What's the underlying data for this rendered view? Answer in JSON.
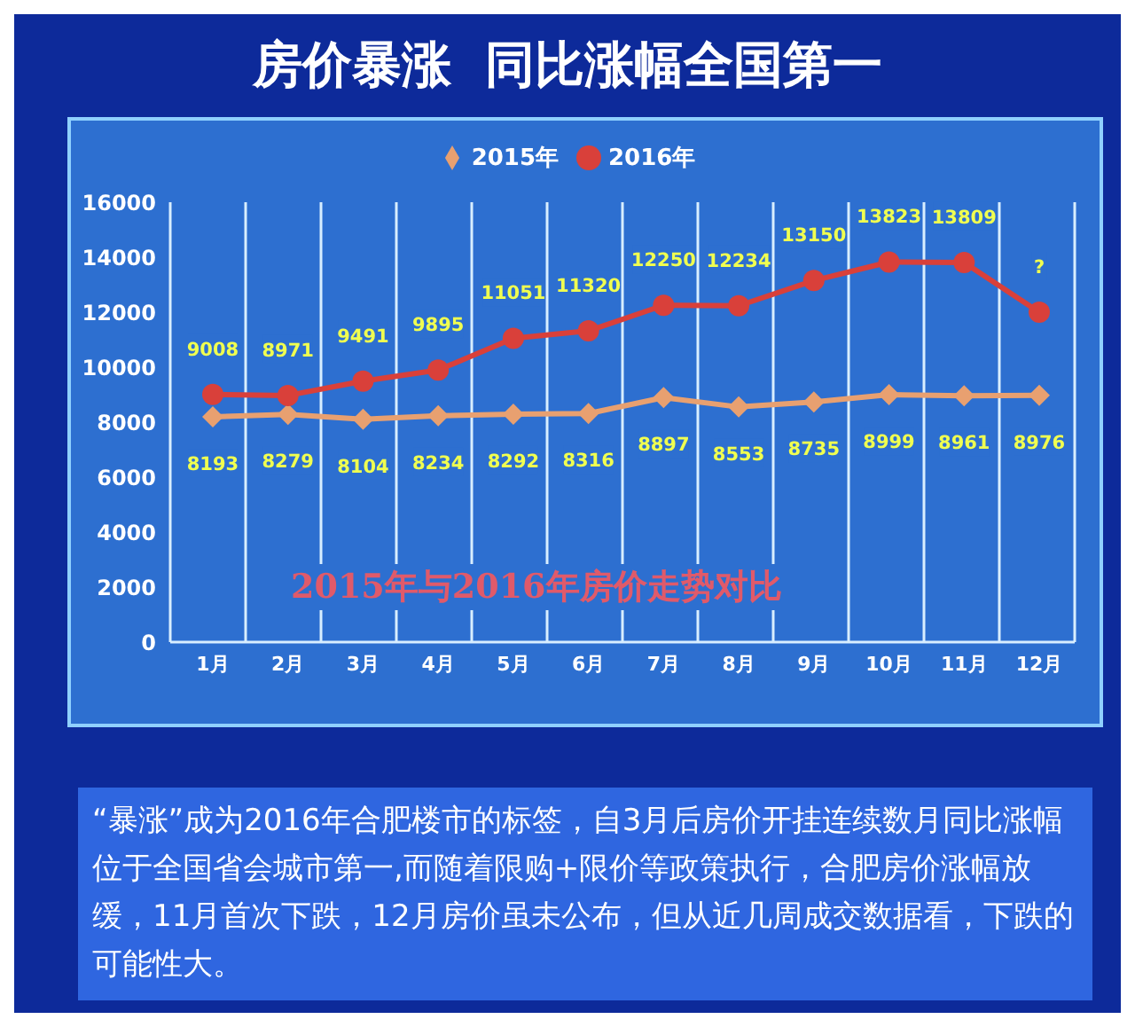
{
  "chart_data": {
    "type": "line",
    "title": "房价暴涨  同比涨幅全国第一",
    "categories": [
      "1月",
      "2月",
      "3月",
      "4月",
      "5月",
      "6月",
      "7月",
      "8月",
      "9月",
      "10月",
      "11月",
      "12月"
    ],
    "series": [
      {
        "name": "2015年",
        "color": "#e8a070",
        "marker": "diamond",
        "values": [
          8193,
          8279,
          8104,
          8234,
          8292,
          8316,
          8897,
          8553,
          8735,
          8999,
          8961,
          8976
        ],
        "value_labels": [
          "8193",
          "8279",
          "8104",
          "8234",
          "8292",
          "8316",
          "8897",
          "8553",
          "8735",
          "8999",
          "8961",
          "8976"
        ]
      },
      {
        "name": "2016年",
        "color": "#d9403a",
        "marker": "circle",
        "values": [
          9008,
          8971,
          9491,
          9895,
          11051,
          11320,
          12250,
          12234,
          13150,
          13823,
          13809,
          12000
        ],
        "value_labels": [
          "9008",
          "8971",
          "9491",
          "9895",
          "11051",
          "11320",
          "12250",
          "12234",
          "13150",
          "13823",
          "13809",
          "?"
        ]
      }
    ],
    "ylim": [
      0,
      16000
    ],
    "yticks": [
      0,
      2000,
      4000,
      6000,
      8000,
      10000,
      12000,
      14000,
      16000
    ],
    "grid": "x",
    "legend": "top",
    "annotations": [
      "2015年与2016年房价走势对比",
      "“暴涨”成为2016年合肥楼市的标签，自3月后房价开挂连续数月同比涨幅位于全国省会城市第一,而随着限购+限价等政策执行，合肥房价涨幅放缓，11月首次下跌，12月房价虽未公布，但从近几周成交数据看，下跌的可能性大。"
    ]
  }
}
